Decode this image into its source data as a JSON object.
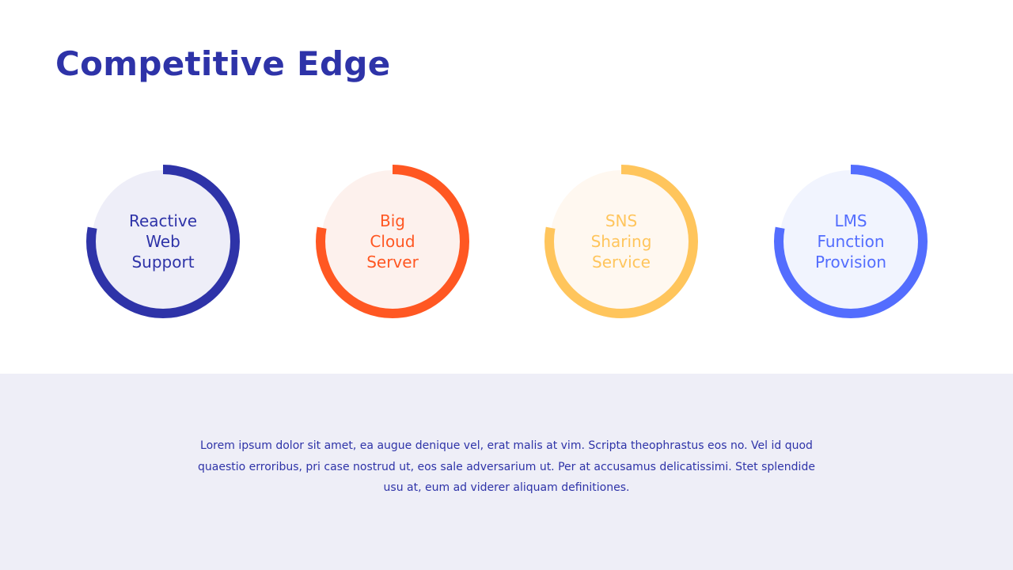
{
  "title": "Competitive Edge",
  "items": [
    {
      "label": "Reactive\nWeb\nSupport",
      "color": "#2e33a8",
      "fill_color": "#eeeef8",
      "progress": 0.78
    },
    {
      "label": "Big\nCloud\nServer",
      "color": "#ff5722",
      "fill_color": "#fdf1ed",
      "progress": 0.78
    },
    {
      "label": "SNS\nSharing\nService",
      "color": "#ffc55c",
      "fill_color": "#fff8f0",
      "progress": 0.78
    },
    {
      "label": "LMS\nFunction\nProvision",
      "color": "#536dfe",
      "fill_color": "#f1f4fe",
      "progress": 0.78
    }
  ],
  "description": "Lorem ipsum dolor sit amet, ea augue denique vel, erat malis at vim. Scripta theophrastus eos no. Vel id quod quaestio erroribus, pri case nostrud ut, eos sale adversarium ut. Per at accusamus delicatissimi. Stet splendide usu at, eum ad viderer aliquam definitiones."
}
